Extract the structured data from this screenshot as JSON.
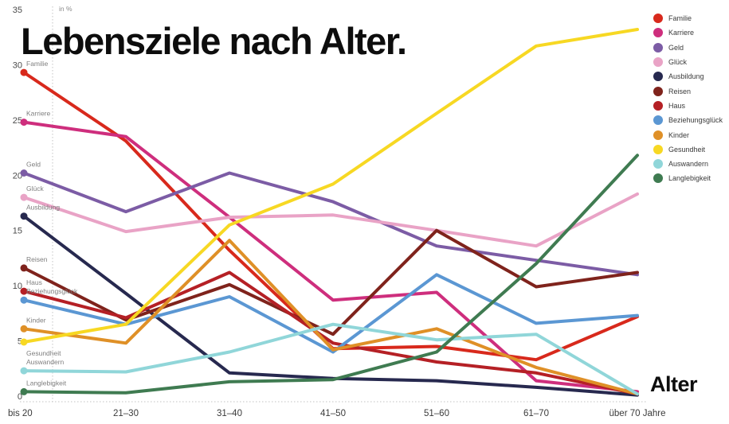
{
  "title": "Lebensziele nach Alter.",
  "unit_note": "in %",
  "x_axis_title": "Alter",
  "chart_data": {
    "type": "line",
    "title": "Lebensziele nach Alter.",
    "ylabel": "in %",
    "xlabel": "Alter",
    "ylim": [
      0,
      35
    ],
    "y_ticks": [
      0,
      5,
      10,
      15,
      20,
      25,
      30,
      35
    ],
    "grid": "dotted-axes-only",
    "legend_position": "top-right",
    "categories": [
      "bis 20",
      "21–30",
      "31–40",
      "41–50",
      "51–60",
      "61–70",
      "über 70 Jahre"
    ],
    "series": [
      {
        "name": "Familie",
        "color": "#d8291c",
        "values": [
          29.3,
          23.1,
          13.2,
          4.3,
          4.5,
          3.3,
          7.2
        ]
      },
      {
        "name": "Karriere",
        "color": "#ce2e7d",
        "values": [
          24.8,
          23.5,
          16.2,
          8.7,
          9.4,
          1.4,
          0.4
        ]
      },
      {
        "name": "Geld",
        "color": "#7c5ca5",
        "values": [
          20.2,
          16.7,
          20.2,
          17.6,
          13.6,
          12.3,
          11.0
        ]
      },
      {
        "name": "Glück",
        "color": "#e9a3c6",
        "values": [
          18.0,
          14.9,
          16.2,
          16.4,
          15.0,
          13.6,
          18.3
        ]
      },
      {
        "name": "Ausbildung",
        "color": "#27294f",
        "values": [
          16.3,
          9.3,
          2.1,
          1.6,
          1.4,
          0.8,
          0.1
        ]
      },
      {
        "name": "Reisen",
        "color": "#7f231c",
        "values": [
          11.6,
          6.9,
          10.1,
          5.6,
          15.0,
          9.9,
          11.2
        ]
      },
      {
        "name": "Haus",
        "color": "#b52025",
        "values": [
          9.5,
          7.1,
          11.2,
          4.8,
          3.1,
          2.1,
          0.2
        ]
      },
      {
        "name": "Beziehungsglück",
        "color": "#5b97d3",
        "values": [
          8.7,
          6.5,
          9.0,
          4.0,
          11.0,
          6.6,
          7.3
        ]
      },
      {
        "name": "Kinder",
        "color": "#df9027",
        "values": [
          6.1,
          4.8,
          14.1,
          4.2,
          6.1,
          2.6,
          0.2
        ]
      },
      {
        "name": "Gesundheit",
        "color": "#f7d823",
        "values": [
          4.9,
          6.5,
          15.5,
          19.2,
          25.6,
          31.7,
          33.2
        ]
      },
      {
        "name": "Auswandern",
        "color": "#90d6d9",
        "values": [
          2.3,
          2.2,
          4.0,
          6.5,
          5.1,
          5.6,
          0.2
        ]
      },
      {
        "name": "Langlebigkeit",
        "color": "#3f7b51",
        "values": [
          0.4,
          0.3,
          1.3,
          1.5,
          4.0,
          12.0,
          21.8
        ]
      }
    ],
    "series_label_dy": {
      "Gesundheit": 17,
      "default": -8
    }
  }
}
